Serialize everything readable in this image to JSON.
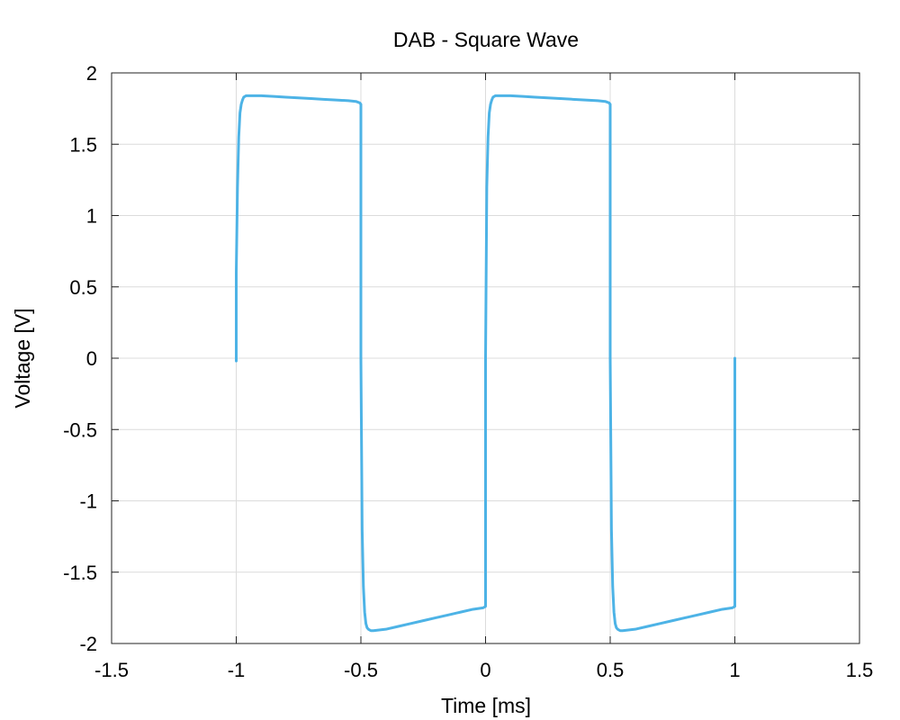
{
  "chart_data": {
    "type": "line",
    "title": "DAB - Square Wave",
    "xlabel": "Time [ms]",
    "ylabel": "Voltage [V]",
    "xlim": [
      -1.5,
      1.5
    ],
    "ylim": [
      -2,
      2
    ],
    "xticks": [
      -1.5,
      -1,
      -0.5,
      0,
      0.5,
      1,
      1.5
    ],
    "xtick_labels": [
      "-1.5",
      "-1",
      "-0.5",
      "0",
      "0.5",
      "1",
      "1.5"
    ],
    "yticks": [
      -2,
      -1.5,
      -1,
      -0.5,
      0,
      0.5,
      1,
      1.5,
      2
    ],
    "ytick_labels": [
      "-2",
      "-1.5",
      "-1",
      "-0.5",
      "0",
      "0.5",
      "1",
      "1.5",
      "2"
    ],
    "grid": true,
    "series": [
      {
        "color": "#4DB3E6",
        "x": [
          -1.0,
          -1.0,
          -0.995,
          -0.99,
          -0.985,
          -0.98,
          -0.975,
          -0.97,
          -0.96,
          -0.95,
          -0.93,
          -0.9,
          -0.85,
          -0.8,
          -0.75,
          -0.7,
          -0.65,
          -0.6,
          -0.55,
          -0.52,
          -0.505,
          -0.5,
          -0.5,
          -0.495,
          -0.49,
          -0.485,
          -0.48,
          -0.475,
          -0.47,
          -0.46,
          -0.45,
          -0.4,
          -0.35,
          -0.3,
          -0.25,
          -0.2,
          -0.15,
          -0.1,
          -0.05,
          -0.01,
          0.0,
          0.0,
          0.005,
          0.01,
          0.015,
          0.02,
          0.025,
          0.03,
          0.04,
          0.05,
          0.07,
          0.1,
          0.15,
          0.2,
          0.25,
          0.3,
          0.35,
          0.4,
          0.45,
          0.48,
          0.495,
          0.5,
          0.5,
          0.505,
          0.51,
          0.515,
          0.52,
          0.525,
          0.53,
          0.54,
          0.55,
          0.6,
          0.65,
          0.7,
          0.75,
          0.8,
          0.85,
          0.9,
          0.95,
          0.99,
          1.0,
          1.0
        ],
        "y": [
          -0.02,
          0.6,
          1.2,
          1.55,
          1.72,
          1.78,
          1.81,
          1.83,
          1.84,
          1.84,
          1.84,
          1.84,
          1.835,
          1.83,
          1.825,
          1.82,
          1.815,
          1.81,
          1.805,
          1.8,
          1.79,
          1.78,
          0.0,
          -1.2,
          -1.6,
          -1.78,
          -1.86,
          -1.89,
          -1.9,
          -1.91,
          -1.91,
          -1.9,
          -1.88,
          -1.86,
          -1.84,
          -1.82,
          -1.8,
          -1.78,
          -1.76,
          -1.75,
          -1.74,
          0.0,
          1.2,
          1.55,
          1.72,
          1.78,
          1.81,
          1.83,
          1.84,
          1.84,
          1.84,
          1.84,
          1.835,
          1.83,
          1.825,
          1.82,
          1.815,
          1.81,
          1.805,
          1.8,
          1.79,
          1.78,
          0.0,
          -1.2,
          -1.6,
          -1.78,
          -1.86,
          -1.89,
          -1.9,
          -1.91,
          -1.91,
          -1.9,
          -1.88,
          -1.86,
          -1.84,
          -1.82,
          -1.8,
          -1.78,
          -1.76,
          -1.75,
          -1.74,
          0.0
        ]
      }
    ]
  }
}
